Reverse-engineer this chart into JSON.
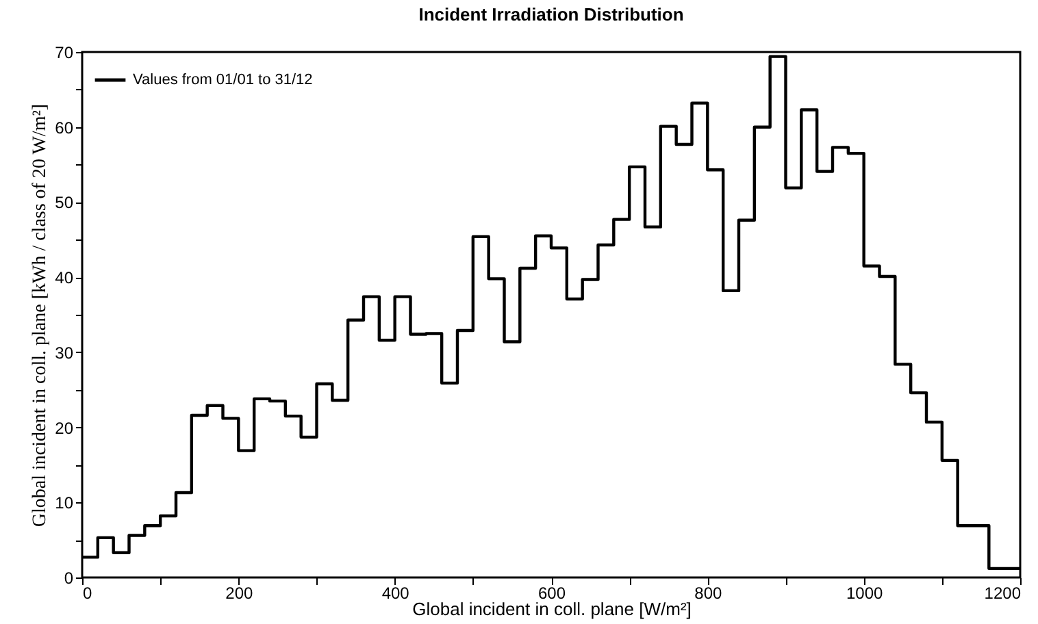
{
  "chart_data": {
    "type": "histogram",
    "title": "Incident Irradiation Distribution",
    "xlabel": "Global incident in coll. plane [W/m²]",
    "ylabel": "Global incident in coll. plane [kWh / class of 20 W/m²]",
    "bins": [
      0,
      20,
      40,
      60,
      80,
      100,
      120,
      140,
      160,
      180,
      200,
      220,
      240,
      260,
      280,
      300,
      320,
      340,
      360,
      380,
      400,
      420,
      440,
      460,
      480,
      500,
      520,
      540,
      560,
      580,
      600,
      620,
      640,
      660,
      680,
      700,
      720,
      740,
      760,
      780,
      800,
      820,
      840,
      860,
      880,
      900,
      920,
      940,
      960,
      980,
      1000,
      1020,
      1040,
      1060,
      1080,
      1100,
      1120,
      1140,
      1160,
      1180,
      1200
    ],
    "series": [
      {
        "name": "Values from 01/01 to 31/12",
        "color": "#000000",
        "values": [
          2.7,
          5.3,
          3.3,
          5.6,
          6.9,
          8.2,
          11.3,
          21.6,
          22.9,
          21.2,
          16.9,
          23.8,
          23.5,
          21.5,
          18.7,
          25.8,
          23.6,
          34.3,
          37.4,
          31.6,
          37.4,
          32.4,
          32.5,
          25.9,
          32.9,
          45.4,
          39.8,
          31.4,
          41.2,
          45.5,
          43.9,
          37.1,
          39.7,
          44.3,
          47.7,
          54.7,
          46.7,
          60.1,
          57.7,
          63.2,
          54.3,
          38.2,
          47.6,
          60.0,
          69.4,
          51.9,
          62.3,
          54.1,
          57.3,
          56.5,
          41.5,
          40.1,
          28.4,
          24.6,
          20.7,
          15.6,
          6.9,
          6.9,
          1.2,
          1.2
        ]
      }
    ],
    "xlim": [
      0,
      1200
    ],
    "xticks": [
      0,
      {
        "value": 100,
        "label": null
      },
      200,
      {
        "value": 300,
        "label": null
      },
      400,
      {
        "value": 500,
        "label": null
      },
      600,
      {
        "value": 700,
        "label": null
      },
      800,
      {
        "value": 900,
        "label": null
      },
      1000,
      {
        "value": 1100,
        "label": null
      },
      1200
    ],
    "ylim": [
      0,
      70
    ],
    "yticks": [
      0,
      {
        "value": 5,
        "label": null
      },
      10,
      {
        "value": 15,
        "label": null
      },
      20,
      {
        "value": 25,
        "label": null
      },
      30,
      {
        "value": 35,
        "label": null
      },
      40,
      {
        "value": 45,
        "label": null
      },
      50,
      {
        "value": 55,
        "label": null
      },
      60,
      {
        "value": 65,
        "label": null
      },
      70
    ],
    "grid": false,
    "legend": "top left",
    "line_style": "solid"
  }
}
